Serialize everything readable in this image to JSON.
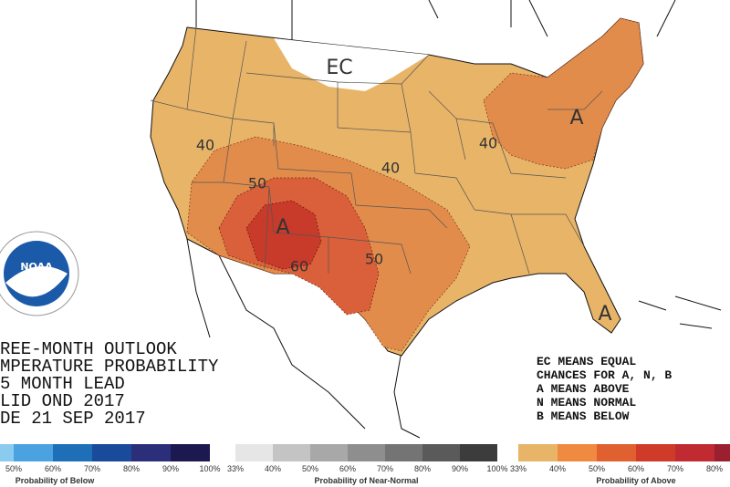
{
  "map": {
    "labels": [
      "EC",
      "40",
      "50",
      "A",
      "60",
      "50",
      "40",
      "40",
      "A",
      "A"
    ]
  },
  "logo": "NOAA",
  "outlook_text": {
    "lines": [
      "REE-MONTH OUTLOOK",
      "MPERATURE PROBABILITY",
      "5 MONTH LEAD",
      "LID OND 2017",
      "DE 21 SEP 2017"
    ]
  },
  "key_text": {
    "lines": [
      "EC MEANS EQUAL",
      "CHANCES FOR A, N, B",
      "A MEANS ABOVE",
      "N MEANS NORMAL",
      "B MEANS BELOW"
    ]
  },
  "legend": {
    "below": {
      "ticks": [
        "50%",
        "60%",
        "70%",
        "80%",
        "90%",
        "100%"
      ],
      "title": "Probability of Below"
    },
    "near_normal": {
      "ticks": [
        "33%",
        "40%",
        "50%",
        "60%",
        "70%",
        "80%",
        "90%",
        "100%"
      ],
      "title": "Probability of Near-Normal"
    },
    "above": {
      "ticks": [
        "33%",
        "40%",
        "50%",
        "60%",
        "70%",
        "80%"
      ],
      "title": "Probability of Above"
    }
  }
}
